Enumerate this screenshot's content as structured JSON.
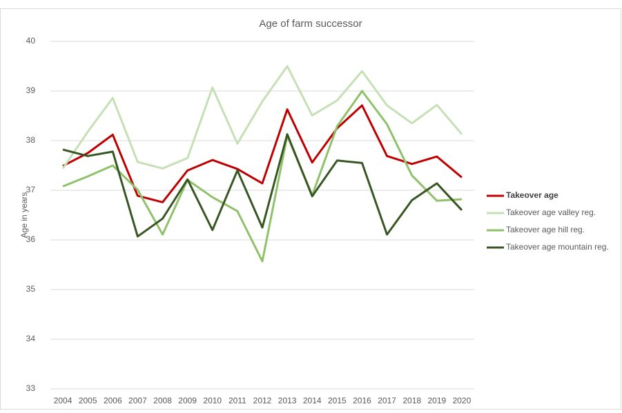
{
  "chart_data": {
    "type": "line",
    "title": "Age of farm successor",
    "y_label": "Age in years",
    "categories": [
      "2004",
      "2005",
      "2006",
      "2007",
      "2008",
      "2009",
      "2010",
      "2011",
      "2012",
      "2013",
      "2014",
      "2015",
      "2016",
      "2017",
      "2018",
      "2019",
      "2020"
    ],
    "series": [
      {
        "name": "Takeover age",
        "color": "#c00000",
        "values": [
          37.49,
          37.75,
          38.12,
          36.89,
          36.76,
          37.4,
          37.61,
          37.43,
          37.14,
          38.63,
          37.56,
          38.25,
          38.71,
          37.69,
          37.53,
          37.68,
          37.26
        ]
      },
      {
        "name": "Takeover age valley reg.",
        "color": "#c5e0b4",
        "values": [
          37.44,
          38.18,
          38.86,
          37.57,
          37.44,
          37.65,
          39.07,
          37.94,
          38.79,
          39.5,
          38.51,
          38.81,
          39.4,
          38.71,
          38.35,
          38.72,
          38.13
        ]
      },
      {
        "name": "Takeover age hill reg.",
        "color": "#8fc16a",
        "values": [
          37.08,
          37.28,
          37.5,
          37.01,
          36.11,
          37.21,
          36.86,
          36.58,
          35.57,
          38.1,
          36.9,
          38.29,
          39.0,
          38.33,
          37.3,
          36.79,
          36.82
        ]
      },
      {
        "name": "Takeover age mountain reg.",
        "color": "#375623",
        "values": [
          37.82,
          37.69,
          37.78,
          36.07,
          36.43,
          37.22,
          36.2,
          37.4,
          36.25,
          38.13,
          36.88,
          37.6,
          37.55,
          36.11,
          36.8,
          37.14,
          36.6
        ]
      }
    ],
    "ylim": [
      33,
      40
    ],
    "yticks": [
      33,
      34,
      35,
      36,
      37,
      38,
      39,
      40
    ],
    "grid": true,
    "legend": "right"
  }
}
